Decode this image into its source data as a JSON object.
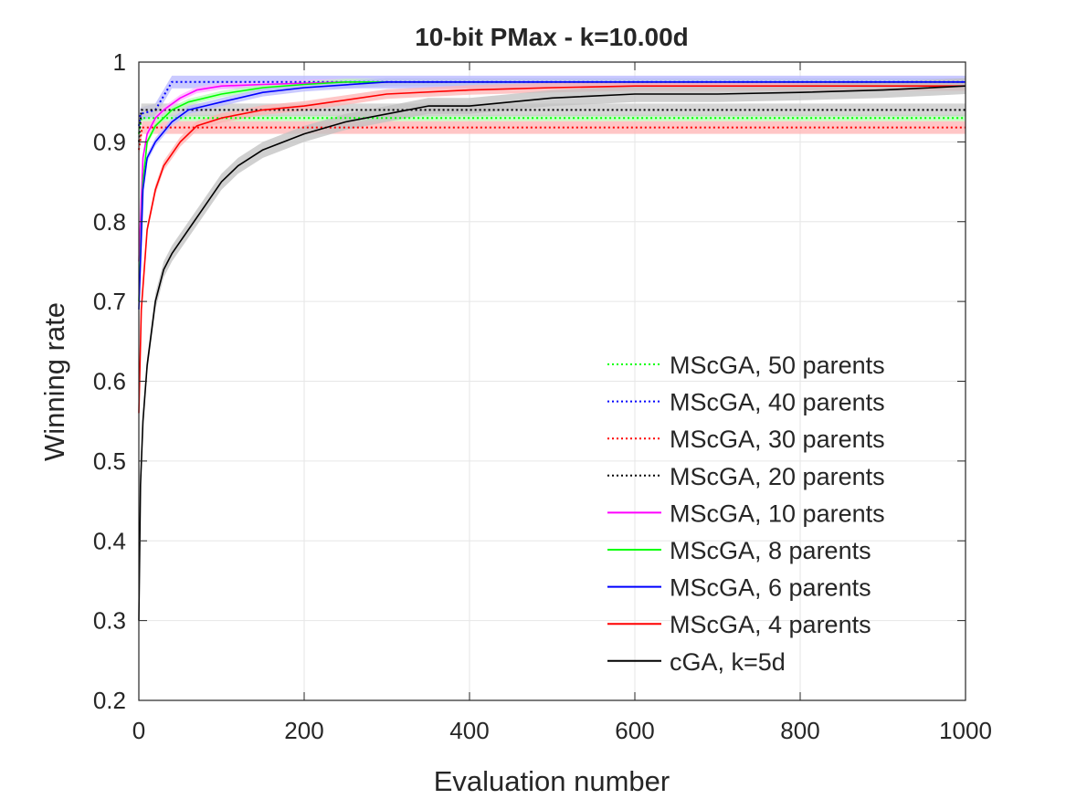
{
  "chart_data": {
    "type": "line",
    "title": "10-bit PMax - k=10.00d",
    "xlabel": "Evaluation number",
    "ylabel": "Winning rate",
    "xlim": [
      0,
      1000
    ],
    "ylim": [
      0.2,
      1.0
    ],
    "xticks": [
      0,
      200,
      400,
      600,
      800,
      1000
    ],
    "xtick_labels": [
      "0",
      "200",
      "400",
      "600",
      "800",
      "1000"
    ],
    "yticks": [
      0.2,
      0.3,
      0.4,
      0.5,
      0.6,
      0.7,
      0.8,
      0.9,
      1.0
    ],
    "ytick_labels": [
      "0.2",
      "0.3",
      "0.4",
      "0.5",
      "0.6",
      "0.7",
      "0.8",
      "0.9",
      "1"
    ],
    "grid": true,
    "legend_position": "lower-right",
    "series": [
      {
        "name": "MScGA, 50 parents",
        "color": "#00ff00",
        "style": "dotted",
        "band_color": "#b3ffb3",
        "band": 0.004,
        "x": [
          0,
          3,
          1000
        ],
        "y": [
          0.91,
          0.93,
          0.93
        ]
      },
      {
        "name": "MScGA, 40 parents",
        "color": "#0000ff",
        "style": "dotted",
        "band_color": "#b8b8ff",
        "band": 0.008,
        "x": [
          0,
          2,
          20,
          40,
          1000
        ],
        "y": [
          0.92,
          0.935,
          0.94,
          0.975,
          0.975
        ]
      },
      {
        "name": "MScGA, 30 parents",
        "color": "#ff0000",
        "style": "dotted",
        "band_color": "#ffb3b3",
        "band": 0.008,
        "x": [
          0,
          4,
          1000
        ],
        "y": [
          0.89,
          0.918,
          0.918
        ]
      },
      {
        "name": "MScGA, 20 parents",
        "color": "#000000",
        "style": "dotted",
        "band_color": "#c8c8c8",
        "band": 0.008,
        "x": [
          0,
          3,
          1000
        ],
        "y": [
          0.9,
          0.94,
          0.94
        ]
      },
      {
        "name": "MScGA, 10 parents",
        "color": "#ff00ff",
        "style": "solid",
        "band_color": "#ffb3ff",
        "band": 0.004,
        "x": [
          0,
          5,
          10,
          20,
          30,
          50,
          70,
          100,
          150,
          250,
          1000
        ],
        "y": [
          0.75,
          0.88,
          0.91,
          0.93,
          0.94,
          0.955,
          0.965,
          0.97,
          0.972,
          0.975,
          0.975
        ]
      },
      {
        "name": "MScGA, 8 parents",
        "color": "#00ff00",
        "style": "solid",
        "band_color": "#b3ffb3",
        "band": 0.004,
        "x": [
          0,
          5,
          10,
          20,
          40,
          60,
          100,
          150,
          200,
          250,
          1000
        ],
        "y": [
          0.7,
          0.85,
          0.9,
          0.92,
          0.94,
          0.95,
          0.96,
          0.968,
          0.972,
          0.975,
          0.975
        ]
      },
      {
        "name": "MScGA, 6 parents",
        "color": "#0000ff",
        "style": "solid",
        "band_color": "#b8b8ff",
        "band": 0.005,
        "x": [
          0,
          5,
          10,
          20,
          40,
          60,
          100,
          150,
          200,
          300,
          1000
        ],
        "y": [
          0.69,
          0.84,
          0.88,
          0.9,
          0.925,
          0.94,
          0.95,
          0.962,
          0.968,
          0.975,
          0.975
        ]
      },
      {
        "name": "MScGA, 4 parents",
        "color": "#ff0000",
        "style": "solid",
        "band_color": "#ffb3b3",
        "band": 0.006,
        "x": [
          0,
          3,
          10,
          20,
          30,
          50,
          70,
          100,
          150,
          200,
          300,
          400,
          500,
          600,
          1000
        ],
        "y": [
          0.56,
          0.69,
          0.79,
          0.84,
          0.87,
          0.9,
          0.92,
          0.93,
          0.94,
          0.945,
          0.96,
          0.965,
          0.968,
          0.97,
          0.97
        ]
      },
      {
        "name": "cGA, k=5d",
        "color": "#000000",
        "style": "solid",
        "band_color": "#c0c0c0",
        "band": 0.01,
        "x": [
          0,
          2,
          5,
          10,
          20,
          30,
          40,
          60,
          80,
          100,
          120,
          150,
          200,
          250,
          300,
          350,
          400,
          450,
          500,
          600,
          700,
          800,
          900,
          1000
        ],
        "y": [
          0.3,
          0.47,
          0.55,
          0.62,
          0.7,
          0.74,
          0.76,
          0.79,
          0.82,
          0.85,
          0.87,
          0.89,
          0.91,
          0.925,
          0.935,
          0.945,
          0.945,
          0.95,
          0.955,
          0.96,
          0.96,
          0.962,
          0.965,
          0.97
        ]
      }
    ]
  }
}
